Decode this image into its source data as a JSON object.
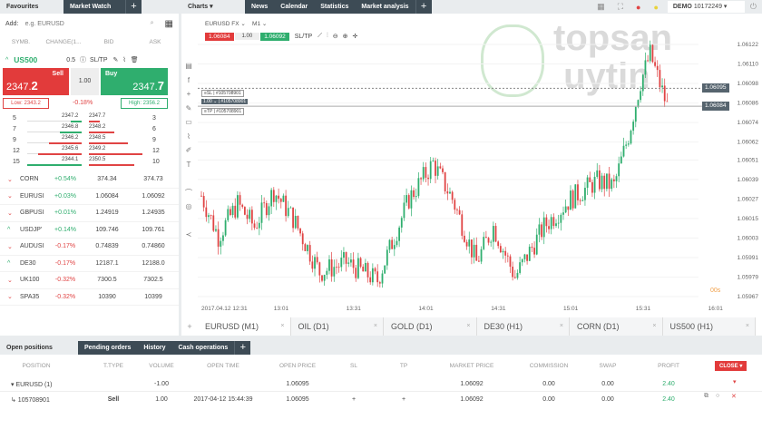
{
  "left_tabs": {
    "favourites": "Favourites",
    "market_watch": "Market Watch"
  },
  "add": {
    "label": "Add:",
    "placeholder": "e.g. EURUSD"
  },
  "columns": [
    "SYMB.",
    "CHANGE(1...",
    "BID",
    "ASK"
  ],
  "instrument": {
    "symbol": "US500",
    "spread": "0.5",
    "sltp": "SL/TP",
    "sell_label": "Sell",
    "sell_price_main": "2347.",
    "sell_price_big": "2",
    "buy_label": "Buy",
    "buy_price_main": "2347.",
    "buy_price_big": "7",
    "volume": "1.00",
    "low": "Low: 2343.2",
    "high": "High: 2356.2",
    "change": "-0.18%"
  },
  "depth": [
    {
      "bid_vol": "5",
      "bid": "2347.2",
      "ask": "2347.7",
      "ask_vol": "3",
      "bid_fill": 0.2,
      "ask_fill": 0.2,
      "bid_color": "#2fae6e"
    },
    {
      "bid_vol": "7",
      "bid": "2346.8",
      "ask": "2348.2",
      "ask_vol": "6",
      "bid_fill": 0.4,
      "ask_fill": 0.45,
      "bid_color": "#2fae6e"
    },
    {
      "bid_vol": "9",
      "bid": "2346.2",
      "ask": "2348.5",
      "ask_vol": "9",
      "bid_fill": 0.6,
      "ask_fill": 0.7,
      "bid_color": "#e04444"
    },
    {
      "bid_vol": "12",
      "bid": "2345.6",
      "ask": "2349.2",
      "ask_vol": "12",
      "bid_fill": 0.8,
      "ask_fill": 0.95,
      "bid_color": "#e04444"
    },
    {
      "bid_vol": "15",
      "bid": "2344.1",
      "ask": "2350.5",
      "ask_vol": "10",
      "bid_fill": 1.0,
      "ask_fill": 0.8,
      "bid_color": "#2fae6e"
    }
  ],
  "watchlist": [
    {
      "dir": "down",
      "symbol": "CORN",
      "change": "+0.54%",
      "bid": "374.34",
      "ask": "374.73"
    },
    {
      "dir": "down",
      "symbol": "EURUSI",
      "change": "+0.03%",
      "bid": "1.06084",
      "ask": "1.06092"
    },
    {
      "dir": "down",
      "symbol": "GBPUSI",
      "change": "+0.01%",
      "bid": "1.24919",
      "ask": "1.24935"
    },
    {
      "dir": "up",
      "symbol": "USDJP'",
      "change": "+0.14%",
      "bid": "109.746",
      "ask": "109.761"
    },
    {
      "dir": "down",
      "symbol": "AUDUSI",
      "change": "-0.17%",
      "bid": "0.74839",
      "ask": "0.74860"
    },
    {
      "dir": "up",
      "symbol": "DE30",
      "change": "-0.17%",
      "bid": "12187.1",
      "ask": "12188.0"
    },
    {
      "dir": "down",
      "symbol": "UK100",
      "change": "-0.32%",
      "bid": "7300.5",
      "ask": "7302.5"
    },
    {
      "dir": "down",
      "symbol": "SPA35",
      "change": "-0.32%",
      "bid": "10390",
      "ask": "10399"
    }
  ],
  "top_tabs": {
    "charts": "Charts ▾",
    "news": "News",
    "calendar": "Calendar",
    "statistics": "Statistics",
    "analysis": "Market analysis"
  },
  "account": {
    "mode": "DEMO",
    "number": "10172249"
  },
  "chart": {
    "symbol": "EURUSD",
    "timeframe": "M1",
    "bid": "1.06084",
    "volume": "1.00",
    "ask": "1.06092",
    "sltp": "SL/TP",
    "order_sl": "#105708901",
    "order_main": "#105708901",
    "order_tp": "#105708901",
    "order_vol": "1.00",
    "open_line": "1.06095",
    "bid_line": "1.06084",
    "countdown": "00s"
  },
  "logo": "topsan uytin",
  "chart_data": {
    "type": "candlestick",
    "ylim": [
      1.05967,
      1.06122
    ],
    "y_ticks": [
      "1.06122",
      "1.06110",
      "1.06098",
      "1.06086",
      "1.06074",
      "1.06062",
      "1.06051",
      "1.06039",
      "1.06027",
      "1.06015",
      "1.06003",
      "1.05991",
      "1.05979",
      "1.05967"
    ],
    "x_ticks": [
      "2017.04.12 12:31",
      "13:01",
      "13:31",
      "14:01",
      "14:31",
      "15:01",
      "15:31",
      "16:01"
    ],
    "approx_path": [
      [
        "12:31",
        1.06029
      ],
      [
        "12:38",
        1.06004
      ],
      [
        "12:46",
        1.06024
      ],
      [
        "12:53",
        1.0601
      ],
      [
        "13:01",
        1.06032
      ],
      [
        "13:09",
        1.06015
      ],
      [
        "13:20",
        1.05982
      ],
      [
        "13:31",
        1.05988
      ],
      [
        "13:44",
        1.05977
      ],
      [
        "13:57",
        1.06027
      ],
      [
        "14:07",
        1.06049
      ],
      [
        "14:15",
        1.06027
      ],
      [
        "14:25",
        1.05988
      ],
      [
        "14:32",
        1.0601
      ],
      [
        "14:41",
        1.05979
      ],
      [
        "14:53",
        1.0601
      ],
      [
        "15:04",
        1.06027
      ],
      [
        "15:15",
        1.06038
      ],
      [
        "15:22",
        1.06035
      ],
      [
        "15:28",
        1.06066
      ],
      [
        "15:33",
        1.06099
      ],
      [
        "15:37",
        1.06116
      ],
      [
        "15:44",
        1.06084
      ]
    ]
  },
  "chart_tabs": [
    "EURUSD (M1)",
    "OIL (D1)",
    "GOLD (D1)",
    "DE30 (H1)",
    "CORN (D1)",
    "US500 (H1)"
  ],
  "bottom_tabs": {
    "open": "Open positions",
    "pending": "Pending orders",
    "history": "History",
    "cash": "Cash operations"
  },
  "positions": {
    "headers": [
      "POSITION",
      "T.TYPE",
      "VOLUME",
      "OPEN TIME",
      "OPEN PRICE",
      "SL",
      "TP",
      "MARKET PRICE",
      "COMMISSION",
      "SWAP",
      "PROFIT"
    ],
    "close": "CLOSE ▾",
    "group": [
      "▾ EURUSD (1)",
      "",
      "-1.00",
      "",
      "1.06095",
      "",
      "",
      "1.06092",
      "0.00",
      "0.00",
      "2.40"
    ],
    "row": [
      "↳ 105708901",
      "Sell",
      "1.00",
      "2017-04-12 15:44:39",
      "1.06095",
      "+",
      "+",
      "1.06092",
      "0.00",
      "0.00",
      "2.40"
    ]
  },
  "colors": {
    "up": "#2fae6e",
    "down": "#e04444",
    "dark": "#3d4b55"
  }
}
